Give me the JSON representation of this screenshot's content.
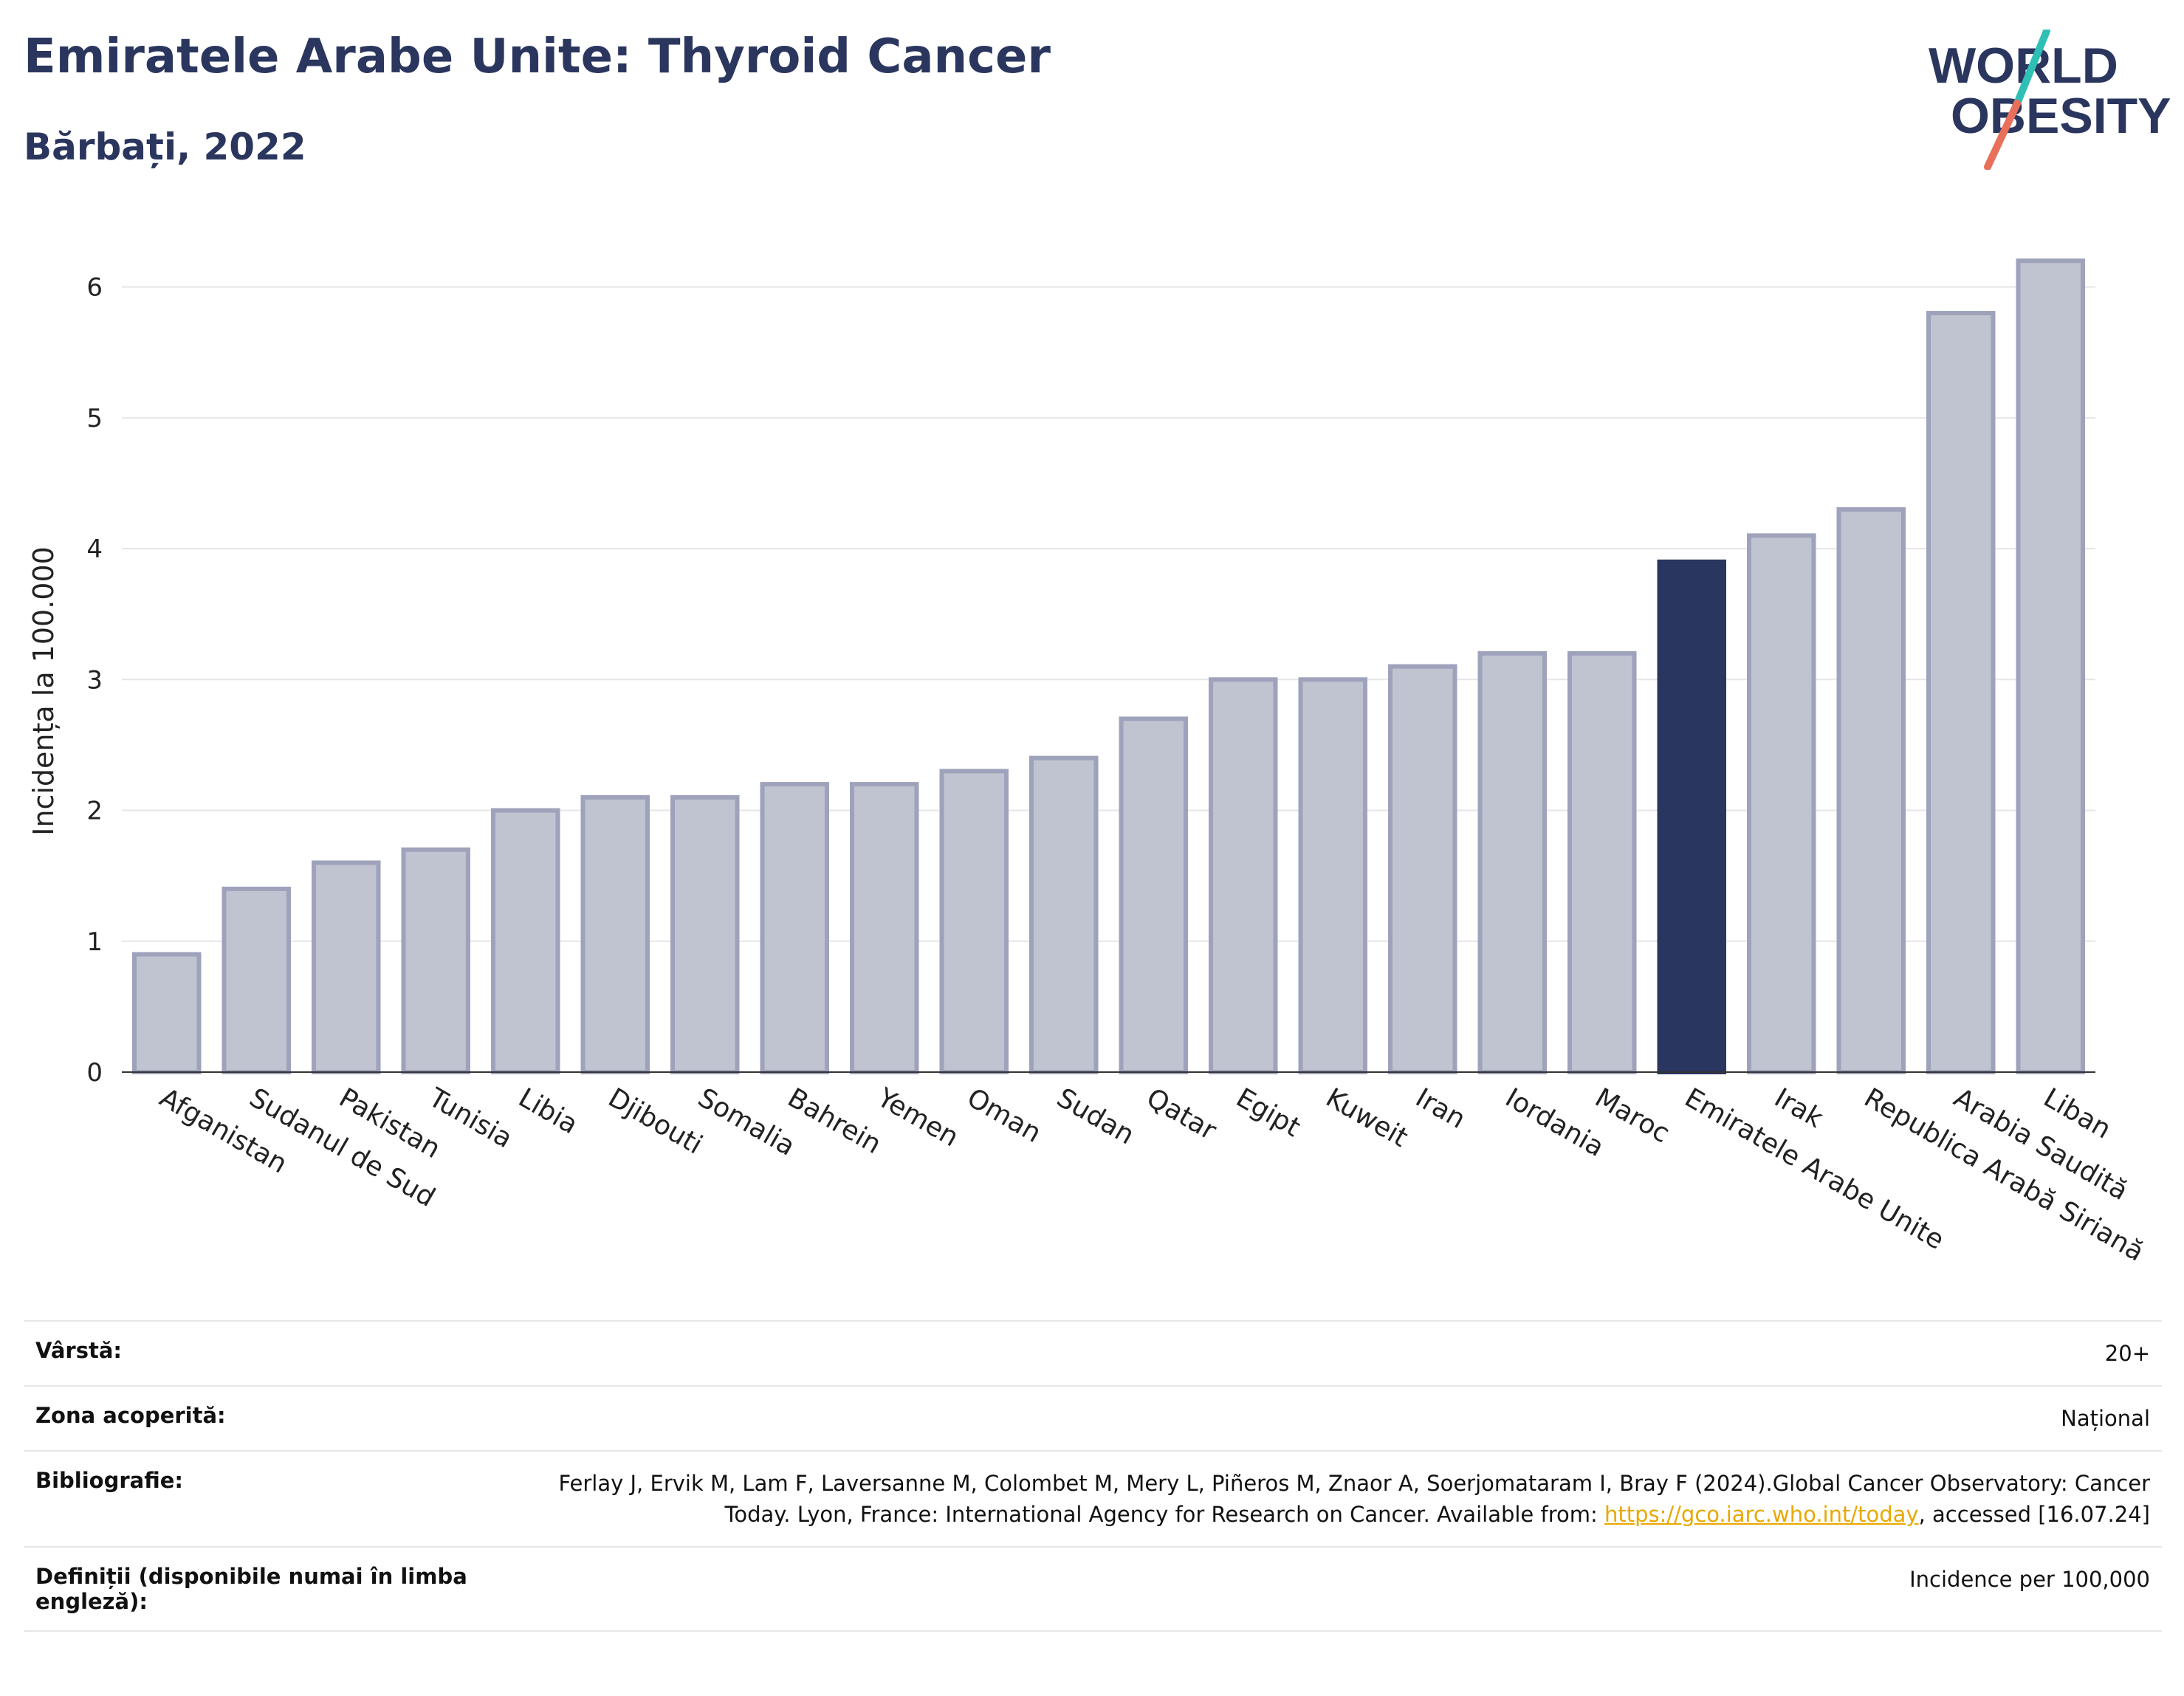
{
  "header": {
    "title": "Emiratele Arabe Unite: Thyroid Cancer",
    "subtitle": "Bărbați, 2022",
    "logo_line1": "WORLD",
    "logo_line2": "OBESITY"
  },
  "colors": {
    "title": "#2b365f",
    "bar": "#c0c3d0",
    "bar_border": "#9ea2bb",
    "highlight": "#29365f",
    "link": "#e9a800",
    "logo_teal": "#2fbfb5",
    "logo_coral": "#e8705b"
  },
  "chart_data": {
    "type": "bar",
    "ylabel": "Incidența la 100.000",
    "xlabel": "",
    "ylim": [
      0,
      6.5
    ],
    "yticks": [
      0,
      1,
      2,
      3,
      4,
      5,
      6
    ],
    "grid": true,
    "highlight": "Emiratele Arabe Unite",
    "categories": [
      "Afganistan",
      "Sudanul de Sud",
      "Pakistan",
      "Tunisia",
      "Libia",
      "Djibouti",
      "Somalia",
      "Bahrein",
      "Yemen",
      "Oman",
      "Sudan",
      "Qatar",
      "Egipt",
      "Kuweit",
      "Iran",
      "Iordania",
      "Maroc",
      "Emiratele Arabe Unite",
      "Irak",
      "Republica Arabă Siriană",
      "Arabia Saudită",
      "Liban"
    ],
    "values": [
      0.9,
      1.4,
      1.6,
      1.7,
      2.0,
      2.1,
      2.1,
      2.2,
      2.2,
      2.3,
      2.4,
      2.7,
      3.0,
      3.0,
      3.1,
      3.2,
      3.2,
      3.9,
      4.1,
      4.3,
      5.8,
      6.2
    ]
  },
  "info": {
    "rows": [
      {
        "label": "Vârstă:",
        "value": "20+"
      },
      {
        "label": "Zona acoperită:",
        "value": "Național"
      },
      {
        "label": "Bibliografie:",
        "value_before": "Ferlay J, Ervik M, Lam F, Laversanne M, Colombet M, Mery L, Piñeros M, Znaor A, Soerjomataram I, Bray F (2024).Global Cancer Observatory: Cancer Today. Lyon, France: International Agency for Research on Cancer. Available from: ",
        "link": "https://gco.iarc.who.int/today",
        "value_after": ", accessed [16.07.24]"
      },
      {
        "label": "Definiții (disponibile numai în limba engleză):",
        "value": "Incidence per 100,000"
      }
    ]
  }
}
